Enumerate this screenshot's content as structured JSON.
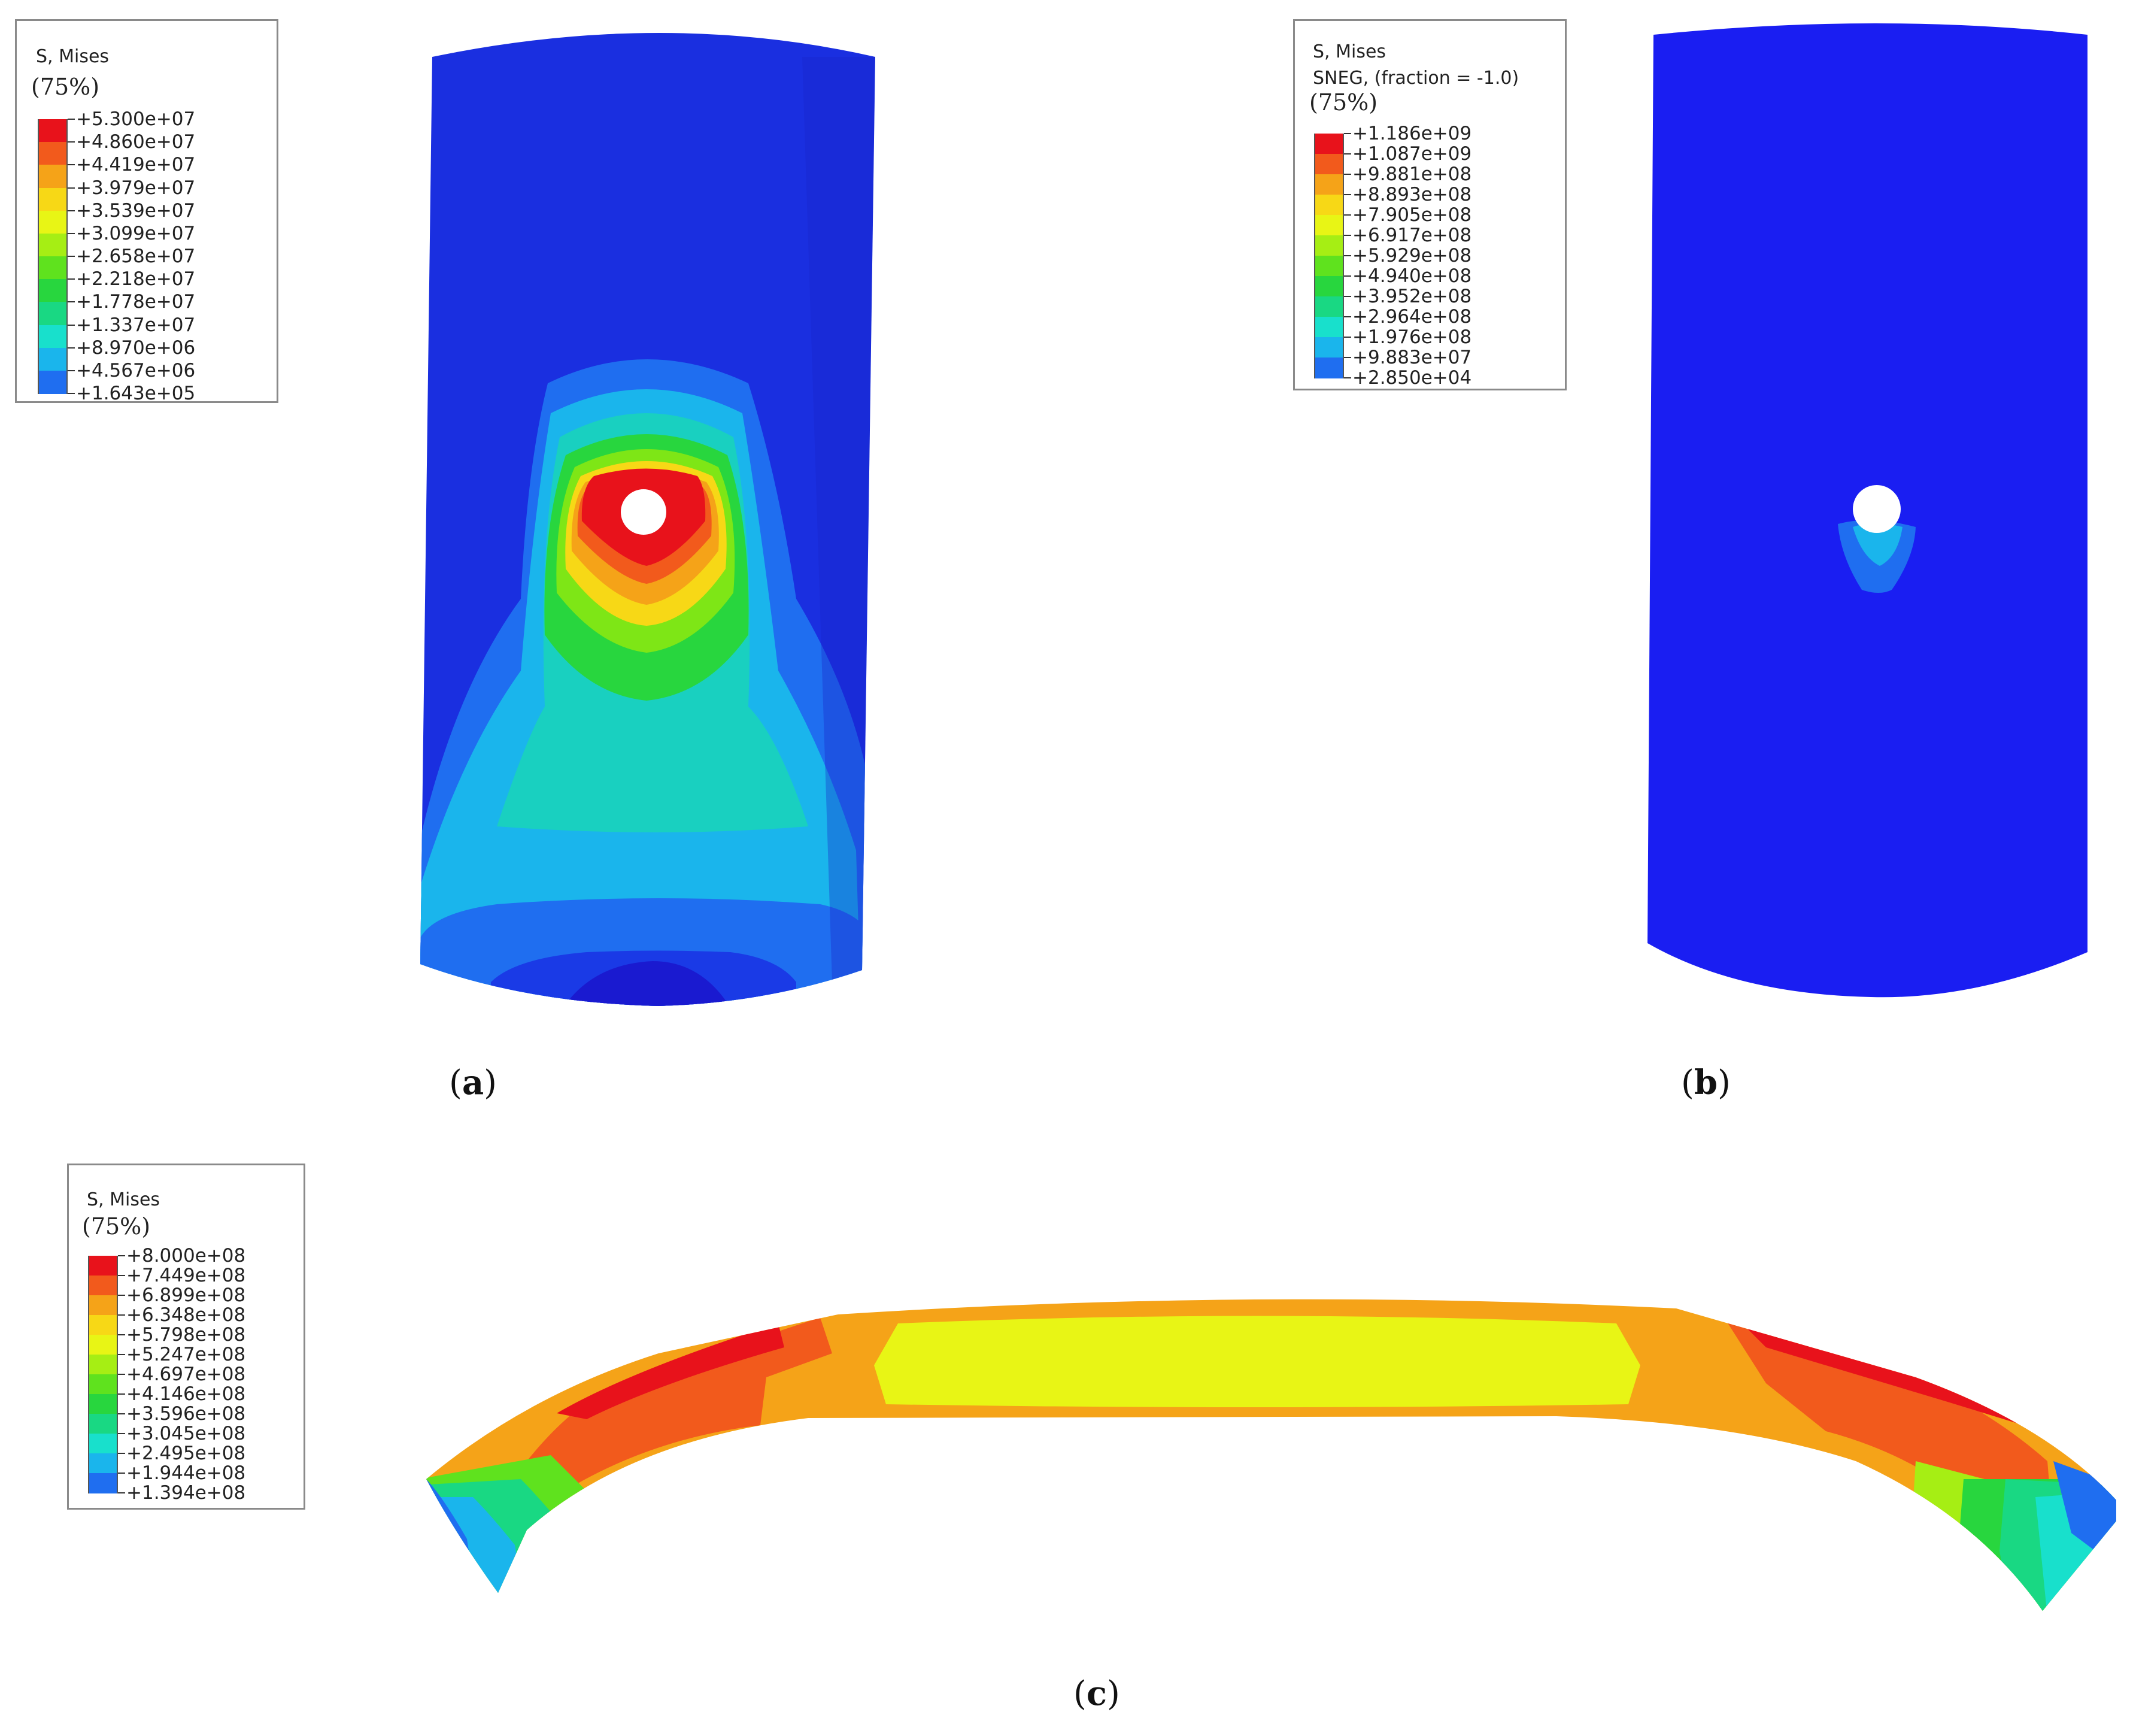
{
  "panels": [
    {
      "id": "a",
      "label_open": "(",
      "label_letter": "a",
      "label_close": ")",
      "legend": {
        "title": "S, Mises",
        "subtitle": "",
        "percent": "(75%)",
        "values": [
          "+5.300e+07",
          "+4.860e+07",
          "+4.419e+07",
          "+3.979e+07",
          "+3.539e+07",
          "+3.099e+07",
          "+2.658e+07",
          "+2.218e+07",
          "+1.778e+07",
          "+1.337e+07",
          "+8.970e+06",
          "+4.567e+06",
          "+1.643e+05"
        ]
      }
    },
    {
      "id": "b",
      "label_open": "(",
      "label_letter": "b",
      "label_close": ")",
      "legend": {
        "title": "S, Mises",
        "subtitle": "SNEG, (fraction = -1.0)",
        "percent": "(75%)",
        "values": [
          "+1.186e+09",
          "+1.087e+09",
          "+9.881e+08",
          "+8.893e+08",
          "+7.905e+08",
          "+6.917e+08",
          "+5.929e+08",
          "+4.940e+08",
          "+3.952e+08",
          "+2.964e+08",
          "+1.976e+08",
          "+9.883e+07",
          "+2.850e+04"
        ]
      }
    },
    {
      "id": "c",
      "label_open": "(",
      "label_letter": "c",
      "label_close": ")",
      "legend": {
        "title": "S, Mises",
        "subtitle": "",
        "percent": "(75%)",
        "values": [
          "+8.000e+08",
          "+7.449e+08",
          "+6.899e+08",
          "+6.348e+08",
          "+5.798e+08",
          "+5.247e+08",
          "+4.697e+08",
          "+4.146e+08",
          "+3.596e+08",
          "+3.045e+08",
          "+2.495e+08",
          "+1.944e+08",
          "+1.394e+08"
        ]
      }
    }
  ],
  "colormap": [
    "#e8121b",
    "#f25a1c",
    "#f5a318",
    "#f7d816",
    "#e8f515",
    "#a6ee14",
    "#5fe21e",
    "#28d63e",
    "#19d883",
    "#18e0cc",
    "#1ab5ec",
    "#1f6ef0",
    "#1a1ad8"
  ]
}
